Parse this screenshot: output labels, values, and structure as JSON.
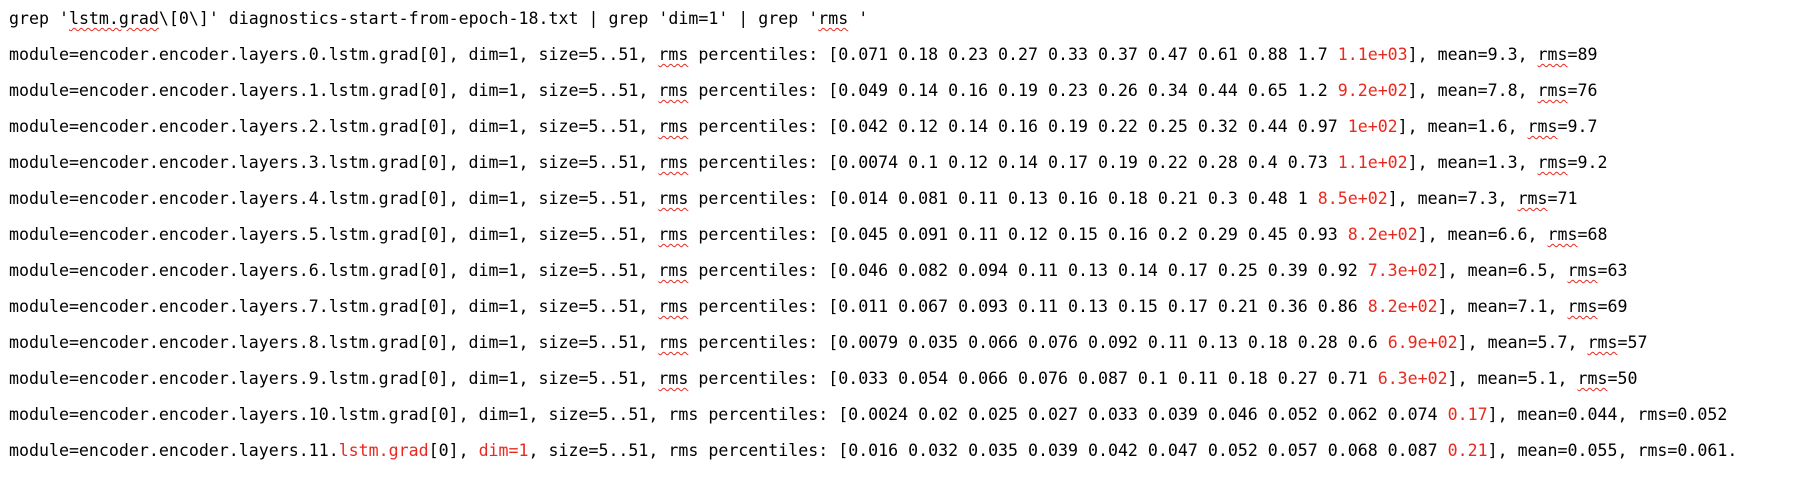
{
  "colors": {
    "highlight": "#e8291f",
    "spell_underline": "#e8291f",
    "text": "#000000",
    "background": "#ffffff"
  },
  "command": {
    "a": "grep '",
    "b": "lstm.grad",
    "c": "\\[0\\]' diagnostics-start-from-epoch-18.txt | grep 'dim=1' | grep '",
    "d": "rms",
    "e": " '"
  },
  "rows": [
    {
      "pre": "module=encoder.encoder.layers.0.lstm.grad[0], dim=1, size=5..51, ",
      "rms1": "rms",
      "mid": " percentiles: [0.071 0.18 0.23 0.27 0.33 0.37 0.47 0.61 0.88 1.7 ",
      "hl": "1.1e+03",
      "tail": "], mean=9.3, ",
      "rms2": "rms",
      "end": "=89"
    },
    {
      "pre": "module=encoder.encoder.layers.1.lstm.grad[0], dim=1, size=5..51, ",
      "rms1": "rms",
      "mid": " percentiles: [0.049 0.14 0.16 0.19 0.23 0.26 0.34 0.44 0.65 1.2 ",
      "hl": "9.2e+02",
      "tail": "], mean=7.8, ",
      "rms2": "rms",
      "end": "=76"
    },
    {
      "pre": "module=encoder.encoder.layers.2.lstm.grad[0], dim=1, size=5..51, ",
      "rms1": "rms",
      "mid": " percentiles: [0.042 0.12 0.14 0.16 0.19 0.22 0.25 0.32 0.44 0.97 ",
      "hl": "1e+02",
      "tail": "], mean=1.6, ",
      "rms2": "rms",
      "end": "=9.7"
    },
    {
      "pre": "module=encoder.encoder.layers.3.lstm.grad[0], dim=1, size=5..51, ",
      "rms1": "rms",
      "mid": " percentiles: [0.0074 0.1 0.12 0.14 0.17 0.19 0.22 0.28 0.4 0.73 ",
      "hl": "1.1e+02",
      "tail": "], mean=1.3, ",
      "rms2": "rms",
      "end": "=9.2"
    },
    {
      "pre": "module=encoder.encoder.layers.4.lstm.grad[0], dim=1, size=5..51, ",
      "rms1": "rms",
      "mid": " percentiles: [0.014 0.081 0.11 0.13 0.16 0.18 0.21 0.3 0.48 1 ",
      "hl": "8.5e+02",
      "tail": "], mean=7.3, ",
      "rms2": "rms",
      "end": "=71"
    },
    {
      "pre": "module=encoder.encoder.layers.5.lstm.grad[0], dim=1, size=5..51, ",
      "rms1": "rms",
      "mid": " percentiles: [0.045 0.091 0.11 0.12 0.15 0.16 0.2 0.29 0.45 0.93 ",
      "hl": "8.2e+02",
      "tail": "], mean=6.6, ",
      "rms2": "rms",
      "end": "=68"
    },
    {
      "pre": "module=encoder.encoder.layers.6.lstm.grad[0], dim=1, size=5..51, ",
      "rms1": "rms",
      "mid": " percentiles: [0.046 0.082 0.094 0.11 0.13 0.14 0.17 0.25 0.39 0.92 ",
      "hl": "7.3e+02",
      "tail": "], mean=6.5, ",
      "rms2": "rms",
      "end": "=63"
    },
    {
      "pre": "module=encoder.encoder.layers.7.lstm.grad[0], dim=1, size=5..51, ",
      "rms1": "rms",
      "mid": " percentiles: [0.011 0.067 0.093 0.11 0.13 0.15 0.17 0.21 0.36 0.86 ",
      "hl": "8.2e+02",
      "tail": "], mean=7.1, ",
      "rms2": "rms",
      "end": "=69"
    },
    {
      "pre": "module=encoder.encoder.layers.8.lstm.grad[0], dim=1, size=5..51, ",
      "rms1": "rms",
      "mid": " percentiles: [0.0079 0.035 0.066 0.076 0.092 0.11 0.13 0.18 0.28 0.6 ",
      "hl": "6.9e+02",
      "tail": "], mean=5.7, ",
      "rms2": "rms",
      "end": "=57"
    },
    {
      "pre": "module=encoder.encoder.layers.9.lstm.grad[0], dim=1, size=5..51, ",
      "rms1": "rms",
      "mid": " percentiles: [0.033 0.054 0.066 0.076 0.087 0.1 0.11 0.18 0.27 0.71 ",
      "hl": "6.3e+02",
      "tail": "], mean=5.1, ",
      "rms2": "rms",
      "end": "=50"
    },
    {
      "pre": "module=encoder.encoder.layers.10.lstm.grad[0], dim=1, size=5..51, rms percentiles: [0.0024 0.02 0.025 0.027 0.033 0.039 0.046 0.052 0.062 0.074 ",
      "hl": "0.17",
      "tail": "], mean=0.044, rms=0.052"
    },
    {
      "pre": "module=encoder.encoder.layers.11.",
      "red1": "lstm.grad",
      "mid1": "[0], ",
      "red2": "dim=1",
      "mid2": ", size=5..51, rms percentiles: [0.016 0.032 0.035 0.039 0.042 0.047 0.052 0.057 0.068 0.087 ",
      "hl": "0.21",
      "tail": "], mean=0.055, rms=0.061."
    }
  ]
}
